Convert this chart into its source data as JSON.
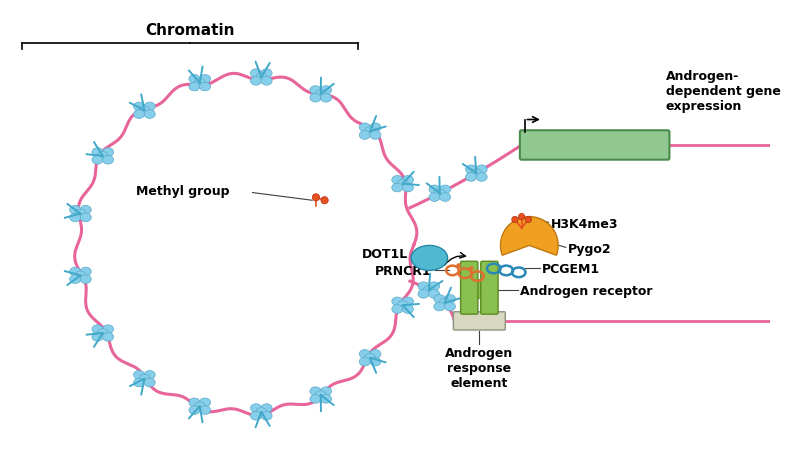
{
  "bg_color": "#ffffff",
  "chromatin_label": "Chromatin",
  "labels": {
    "methyl_group": "Methyl group",
    "DOT1L": "DOT1L",
    "PRNCR1": "PRNCR1",
    "H3K4me3": "H3K4me3",
    "Pygo2": "Pygo2",
    "PCGEM1": "PCGEM1",
    "androgen_receptor": "Androgen receptor",
    "androgen_response": "Androgen\nresponse\nelement",
    "androgen_dependent": "Androgen-\ndependent gene\nexpression"
  },
  "chromatin_strand": "#e8659a",
  "nucleosome": "#87ceeb",
  "nucleosome_outline": "#5aaac8",
  "dna_cyan": "#40a8c8",
  "gene_box": "#90c890",
  "gene_box_outline": "#4a8a4a",
  "androgen_element_box": "#d8d8c0",
  "ar_green": "#8ac050",
  "ar_outline": "#5a8a20",
  "dot1l_color": "#50b8d0",
  "prncr1_color": "#e07030",
  "pcgem1_color": "#2888b8",
  "pygo2_color": "#f0a020",
  "h3k4_color": "#e85020",
  "methyl_color": "#e85020",
  "label_line_color": "#404040",
  "font_size_label": 9,
  "font_size_chromatin": 11
}
